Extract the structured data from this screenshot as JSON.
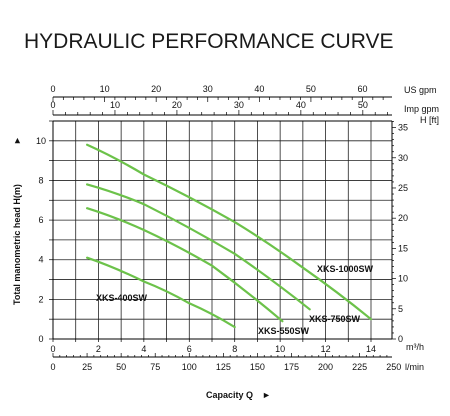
{
  "chart_data": {
    "type": "line",
    "title": "HYDRAULIC PERFORMANCE CURVE",
    "xlabel": "Capacity Q",
    "xlabel_arrow": "►",
    "ylabel": "Total manometric head H(m)",
    "ylabel_arrow": "►",
    "x_unit_m3h": "m³/h",
    "x_unit_lmin": "l/min",
    "x_unit_usgpm": "US gpm",
    "x_unit_impgpm": "Imp gpm",
    "y_unit_ft": "H [ft]",
    "xlim_m3h": [
      0,
      15
    ],
    "ylim_m": [
      0,
      11
    ],
    "grid": true,
    "ticks": {
      "m3h": [
        "0",
        "2",
        "4",
        "6",
        "8",
        "10",
        "12",
        "14"
      ],
      "lmin": [
        "0",
        "25",
        "50",
        "75",
        "100",
        "125",
        "150",
        "175",
        "200",
        "225",
        "250"
      ],
      "usgpm": [
        "0",
        "10",
        "20",
        "30",
        "40",
        "50",
        "60"
      ],
      "impgpm": [
        "0",
        "10",
        "20",
        "30",
        "40",
        "50"
      ],
      "head_m": [
        "0",
        "2",
        "4",
        "6",
        "8",
        "10"
      ],
      "head_ft": [
        "0",
        "5",
        "10",
        "15",
        "20",
        "25",
        "30",
        "35"
      ]
    },
    "series": [
      {
        "name": "XKS-400SW",
        "color": "#6cc24a",
        "x": [
          1.5,
          4,
          6,
          8
        ],
        "y": [
          4.1,
          2.9,
          1.8,
          0.6
        ]
      },
      {
        "name": "XKS-550SW",
        "color": "#6cc24a",
        "x": [
          1.5,
          4,
          7,
          10.1
        ],
        "y": [
          6.6,
          5.5,
          3.7,
          0.9
        ]
      },
      {
        "name": "XKS-750SW",
        "color": "#6cc24a",
        "x": [
          1.5,
          4,
          8,
          11.3
        ],
        "y": [
          7.8,
          6.8,
          4.3,
          1.5
        ]
      },
      {
        "name": "XKS-1000SW",
        "color": "#6cc24a",
        "x": [
          1.5,
          4,
          8,
          11,
          14
        ],
        "y": [
          9.8,
          8.3,
          5.9,
          3.6,
          1.0
        ]
      }
    ]
  }
}
